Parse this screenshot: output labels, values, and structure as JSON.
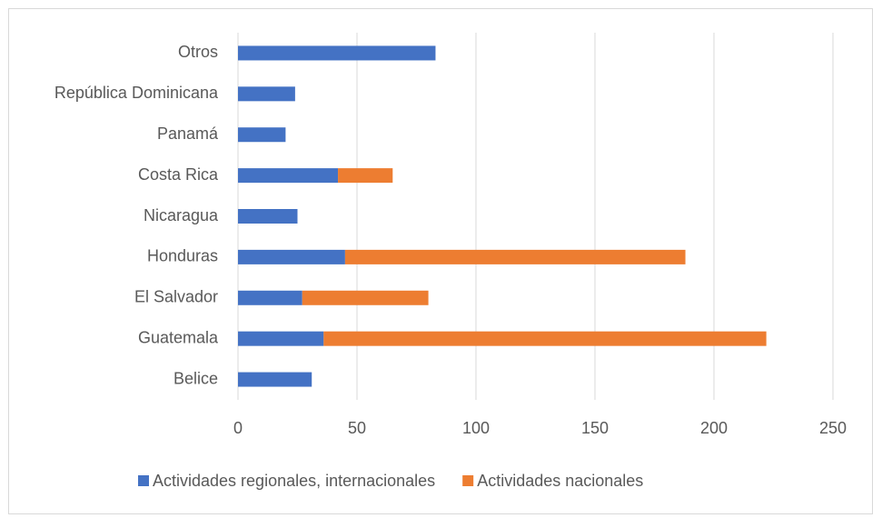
{
  "chart_data": {
    "type": "stacked_barh",
    "categories": [
      "Belice",
      "Guatemala",
      "El Salvador",
      "Honduras",
      "Nicaragua",
      "Costa Rica",
      "Panamá",
      "República Dominicana",
      "Otros"
    ],
    "series": [
      {
        "name": "Actividades regionales, internacionales",
        "color": "#4472c4",
        "values": [
          31,
          36,
          27,
          45,
          25,
          42,
          20,
          24,
          83
        ]
      },
      {
        "name": "Actividades nacionales",
        "color": "#ed7d31",
        "values": [
          0,
          186,
          53,
          143,
          0,
          23,
          0,
          0,
          0
        ]
      }
    ],
    "xlim": [
      0,
      250
    ],
    "xticks": [
      0,
      50,
      100,
      150,
      200,
      250
    ],
    "grid": true,
    "legend": "bottom"
  }
}
